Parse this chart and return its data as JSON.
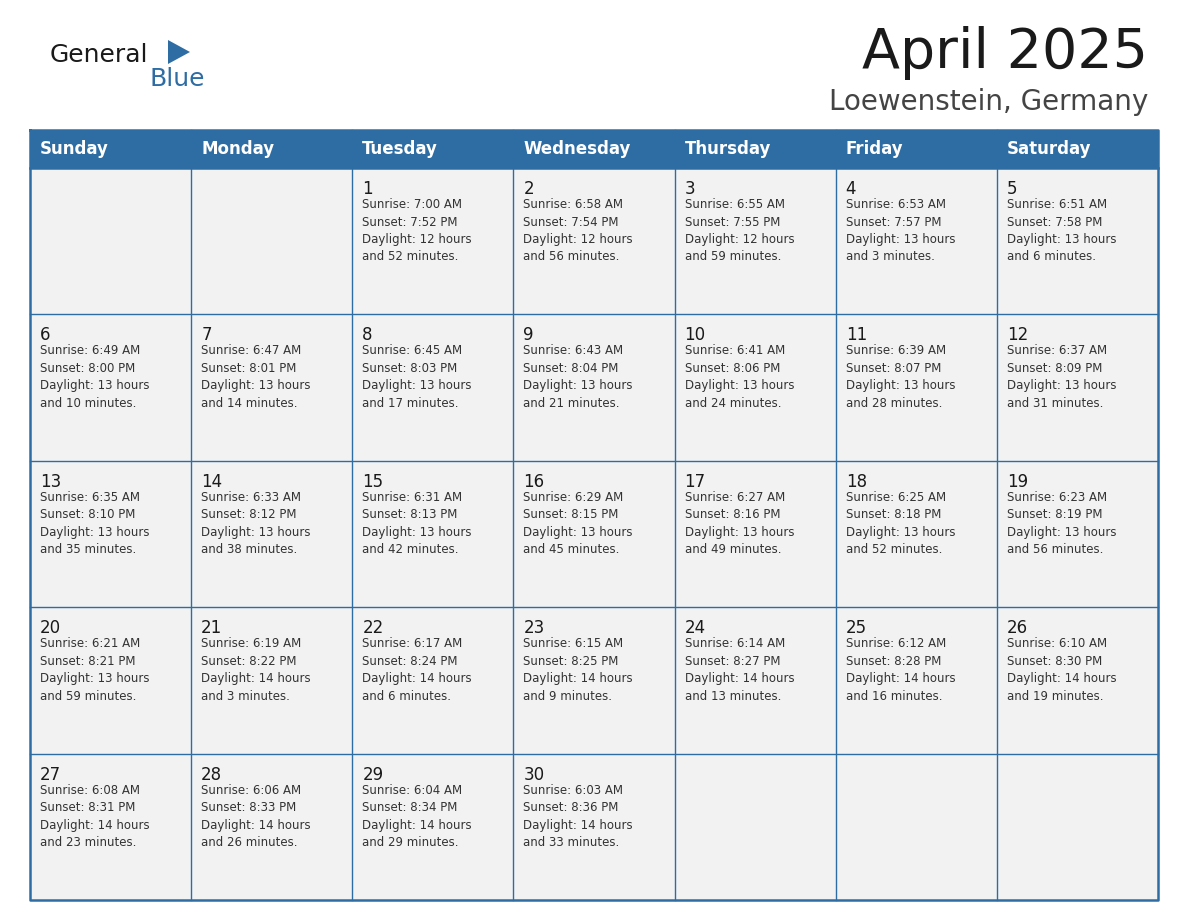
{
  "title": "April 2025",
  "subtitle": "Loewenstein, Germany",
  "header_bg": "#2E6DA4",
  "header_text": "#FFFFFF",
  "cell_bg": "#F2F2F2",
  "border_color": "#2E6DA4",
  "day_names": [
    "Sunday",
    "Monday",
    "Tuesday",
    "Wednesday",
    "Thursday",
    "Friday",
    "Saturday"
  ],
  "title_color": "#1a1a1a",
  "subtitle_color": "#444444",
  "day_num_color": "#1a1a1a",
  "cell_text_color": "#333333",
  "logo_general_color": "#1a1a1a",
  "logo_blue_color": "#2E6DA4",
  "calendar": [
    [
      {
        "day": 0,
        "text": ""
      },
      {
        "day": 0,
        "text": ""
      },
      {
        "day": 1,
        "text": "Sunrise: 7:00 AM\nSunset: 7:52 PM\nDaylight: 12 hours\nand 52 minutes."
      },
      {
        "day": 2,
        "text": "Sunrise: 6:58 AM\nSunset: 7:54 PM\nDaylight: 12 hours\nand 56 minutes."
      },
      {
        "day": 3,
        "text": "Sunrise: 6:55 AM\nSunset: 7:55 PM\nDaylight: 12 hours\nand 59 minutes."
      },
      {
        "day": 4,
        "text": "Sunrise: 6:53 AM\nSunset: 7:57 PM\nDaylight: 13 hours\nand 3 minutes."
      },
      {
        "day": 5,
        "text": "Sunrise: 6:51 AM\nSunset: 7:58 PM\nDaylight: 13 hours\nand 6 minutes."
      }
    ],
    [
      {
        "day": 6,
        "text": "Sunrise: 6:49 AM\nSunset: 8:00 PM\nDaylight: 13 hours\nand 10 minutes."
      },
      {
        "day": 7,
        "text": "Sunrise: 6:47 AM\nSunset: 8:01 PM\nDaylight: 13 hours\nand 14 minutes."
      },
      {
        "day": 8,
        "text": "Sunrise: 6:45 AM\nSunset: 8:03 PM\nDaylight: 13 hours\nand 17 minutes."
      },
      {
        "day": 9,
        "text": "Sunrise: 6:43 AM\nSunset: 8:04 PM\nDaylight: 13 hours\nand 21 minutes."
      },
      {
        "day": 10,
        "text": "Sunrise: 6:41 AM\nSunset: 8:06 PM\nDaylight: 13 hours\nand 24 minutes."
      },
      {
        "day": 11,
        "text": "Sunrise: 6:39 AM\nSunset: 8:07 PM\nDaylight: 13 hours\nand 28 minutes."
      },
      {
        "day": 12,
        "text": "Sunrise: 6:37 AM\nSunset: 8:09 PM\nDaylight: 13 hours\nand 31 minutes."
      }
    ],
    [
      {
        "day": 13,
        "text": "Sunrise: 6:35 AM\nSunset: 8:10 PM\nDaylight: 13 hours\nand 35 minutes."
      },
      {
        "day": 14,
        "text": "Sunrise: 6:33 AM\nSunset: 8:12 PM\nDaylight: 13 hours\nand 38 minutes."
      },
      {
        "day": 15,
        "text": "Sunrise: 6:31 AM\nSunset: 8:13 PM\nDaylight: 13 hours\nand 42 minutes."
      },
      {
        "day": 16,
        "text": "Sunrise: 6:29 AM\nSunset: 8:15 PM\nDaylight: 13 hours\nand 45 minutes."
      },
      {
        "day": 17,
        "text": "Sunrise: 6:27 AM\nSunset: 8:16 PM\nDaylight: 13 hours\nand 49 minutes."
      },
      {
        "day": 18,
        "text": "Sunrise: 6:25 AM\nSunset: 8:18 PM\nDaylight: 13 hours\nand 52 minutes."
      },
      {
        "day": 19,
        "text": "Sunrise: 6:23 AM\nSunset: 8:19 PM\nDaylight: 13 hours\nand 56 minutes."
      }
    ],
    [
      {
        "day": 20,
        "text": "Sunrise: 6:21 AM\nSunset: 8:21 PM\nDaylight: 13 hours\nand 59 minutes."
      },
      {
        "day": 21,
        "text": "Sunrise: 6:19 AM\nSunset: 8:22 PM\nDaylight: 14 hours\nand 3 minutes."
      },
      {
        "day": 22,
        "text": "Sunrise: 6:17 AM\nSunset: 8:24 PM\nDaylight: 14 hours\nand 6 minutes."
      },
      {
        "day": 23,
        "text": "Sunrise: 6:15 AM\nSunset: 8:25 PM\nDaylight: 14 hours\nand 9 minutes."
      },
      {
        "day": 24,
        "text": "Sunrise: 6:14 AM\nSunset: 8:27 PM\nDaylight: 14 hours\nand 13 minutes."
      },
      {
        "day": 25,
        "text": "Sunrise: 6:12 AM\nSunset: 8:28 PM\nDaylight: 14 hours\nand 16 minutes."
      },
      {
        "day": 26,
        "text": "Sunrise: 6:10 AM\nSunset: 8:30 PM\nDaylight: 14 hours\nand 19 minutes."
      }
    ],
    [
      {
        "day": 27,
        "text": "Sunrise: 6:08 AM\nSunset: 8:31 PM\nDaylight: 14 hours\nand 23 minutes."
      },
      {
        "day": 28,
        "text": "Sunrise: 6:06 AM\nSunset: 8:33 PM\nDaylight: 14 hours\nand 26 minutes."
      },
      {
        "day": 29,
        "text": "Sunrise: 6:04 AM\nSunset: 8:34 PM\nDaylight: 14 hours\nand 29 minutes."
      },
      {
        "day": 30,
        "text": "Sunrise: 6:03 AM\nSunset: 8:36 PM\nDaylight: 14 hours\nand 33 minutes."
      },
      {
        "day": 0,
        "text": ""
      },
      {
        "day": 0,
        "text": ""
      },
      {
        "day": 0,
        "text": ""
      }
    ]
  ]
}
